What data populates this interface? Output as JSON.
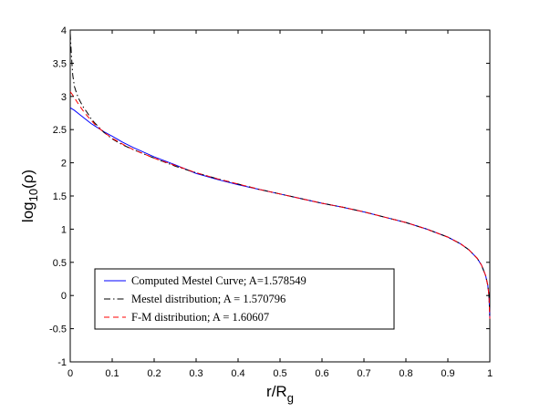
{
  "chart_data": {
    "type": "line",
    "xlabel": "r/R",
    "xlabel_sub": "g",
    "ylabel_pre": "log",
    "ylabel_sub": "10",
    "ylabel_post": "(ρ)",
    "xlim": [
      0,
      1
    ],
    "ylim": [
      -1,
      4
    ],
    "xticks": [
      "0",
      "0.1",
      "0.2",
      "0.3",
      "0.4",
      "0.5",
      "0.6",
      "0.7",
      "0.8",
      "0.9",
      "1"
    ],
    "yticks": [
      "-1",
      "-0.5",
      "0",
      "0.5",
      "1",
      "1.5",
      "2",
      "2.5",
      "3",
      "3.5",
      "4"
    ],
    "grid": false,
    "legend_position": "bottom-left",
    "series": [
      {
        "name": "Computed Mestel Curve; A=1.578549",
        "color": "#0000ff",
        "dash": "solid",
        "x": [
          0.0,
          0.01,
          0.02,
          0.03,
          0.04,
          0.05,
          0.06,
          0.08,
          0.1,
          0.125,
          0.15,
          0.2,
          0.25,
          0.3,
          0.35,
          0.4,
          0.45,
          0.5,
          0.55,
          0.6,
          0.65,
          0.7,
          0.75,
          0.8,
          0.85,
          0.9,
          0.93,
          0.95,
          0.97,
          0.98,
          0.99,
          0.995,
          0.998,
          1.0
        ],
        "y": [
          2.83,
          2.79,
          2.74,
          2.69,
          2.64,
          2.59,
          2.55,
          2.47,
          2.4,
          2.31,
          2.23,
          2.09,
          1.97,
          1.84,
          1.75,
          1.67,
          1.6,
          1.53,
          1.46,
          1.39,
          1.33,
          1.26,
          1.18,
          1.1,
          1.0,
          0.88,
          0.78,
          0.69,
          0.56,
          0.46,
          0.3,
          0.16,
          0.0,
          -0.35
        ]
      },
      {
        "name": "Mestel distribution; A = 1.570796",
        "color": "#000000",
        "dash": "dashdot",
        "x": [
          0.0,
          0.003,
          0.006,
          0.01,
          0.015,
          0.02,
          0.03,
          0.04,
          0.05,
          0.06,
          0.08,
          0.1,
          0.125,
          0.15,
          0.2,
          0.25,
          0.3,
          0.35,
          0.4,
          0.45,
          0.5,
          0.55,
          0.6,
          0.65,
          0.7,
          0.75,
          0.8,
          0.85,
          0.9,
          0.93,
          0.95,
          0.97,
          0.98,
          0.99,
          0.995,
          0.998,
          1.0
        ],
        "y": [
          3.95,
          3.6,
          3.32,
          3.15,
          3.05,
          2.97,
          2.85,
          2.76,
          2.66,
          2.59,
          2.46,
          2.36,
          2.27,
          2.2,
          2.07,
          1.95,
          1.85,
          1.76,
          1.68,
          1.6,
          1.53,
          1.46,
          1.39,
          1.33,
          1.26,
          1.18,
          1.1,
          1.0,
          0.88,
          0.78,
          0.69,
          0.56,
          0.46,
          0.3,
          0.16,
          0.0,
          -0.35
        ]
      },
      {
        "name": "F-M distribution; A = 1.60607",
        "color": "#ff0000",
        "dash": "dashed",
        "x": [
          0.0,
          0.005,
          0.01,
          0.02,
          0.03,
          0.04,
          0.05,
          0.06,
          0.08,
          0.1,
          0.125,
          0.15,
          0.2,
          0.25,
          0.3,
          0.35,
          0.4,
          0.45,
          0.5,
          0.55,
          0.6,
          0.65,
          0.7,
          0.75,
          0.8,
          0.85,
          0.9,
          0.93,
          0.95,
          0.97,
          0.98,
          0.99,
          0.995,
          0.998,
          1.0
        ],
        "y": [
          3.07,
          3.03,
          2.98,
          2.88,
          2.79,
          2.71,
          2.64,
          2.57,
          2.46,
          2.37,
          2.28,
          2.2,
          2.07,
          1.96,
          1.85,
          1.76,
          1.68,
          1.6,
          1.53,
          1.46,
          1.39,
          1.33,
          1.26,
          1.18,
          1.1,
          1.0,
          0.88,
          0.78,
          0.69,
          0.56,
          0.46,
          0.3,
          0.16,
          0.0,
          -0.35
        ]
      }
    ]
  }
}
